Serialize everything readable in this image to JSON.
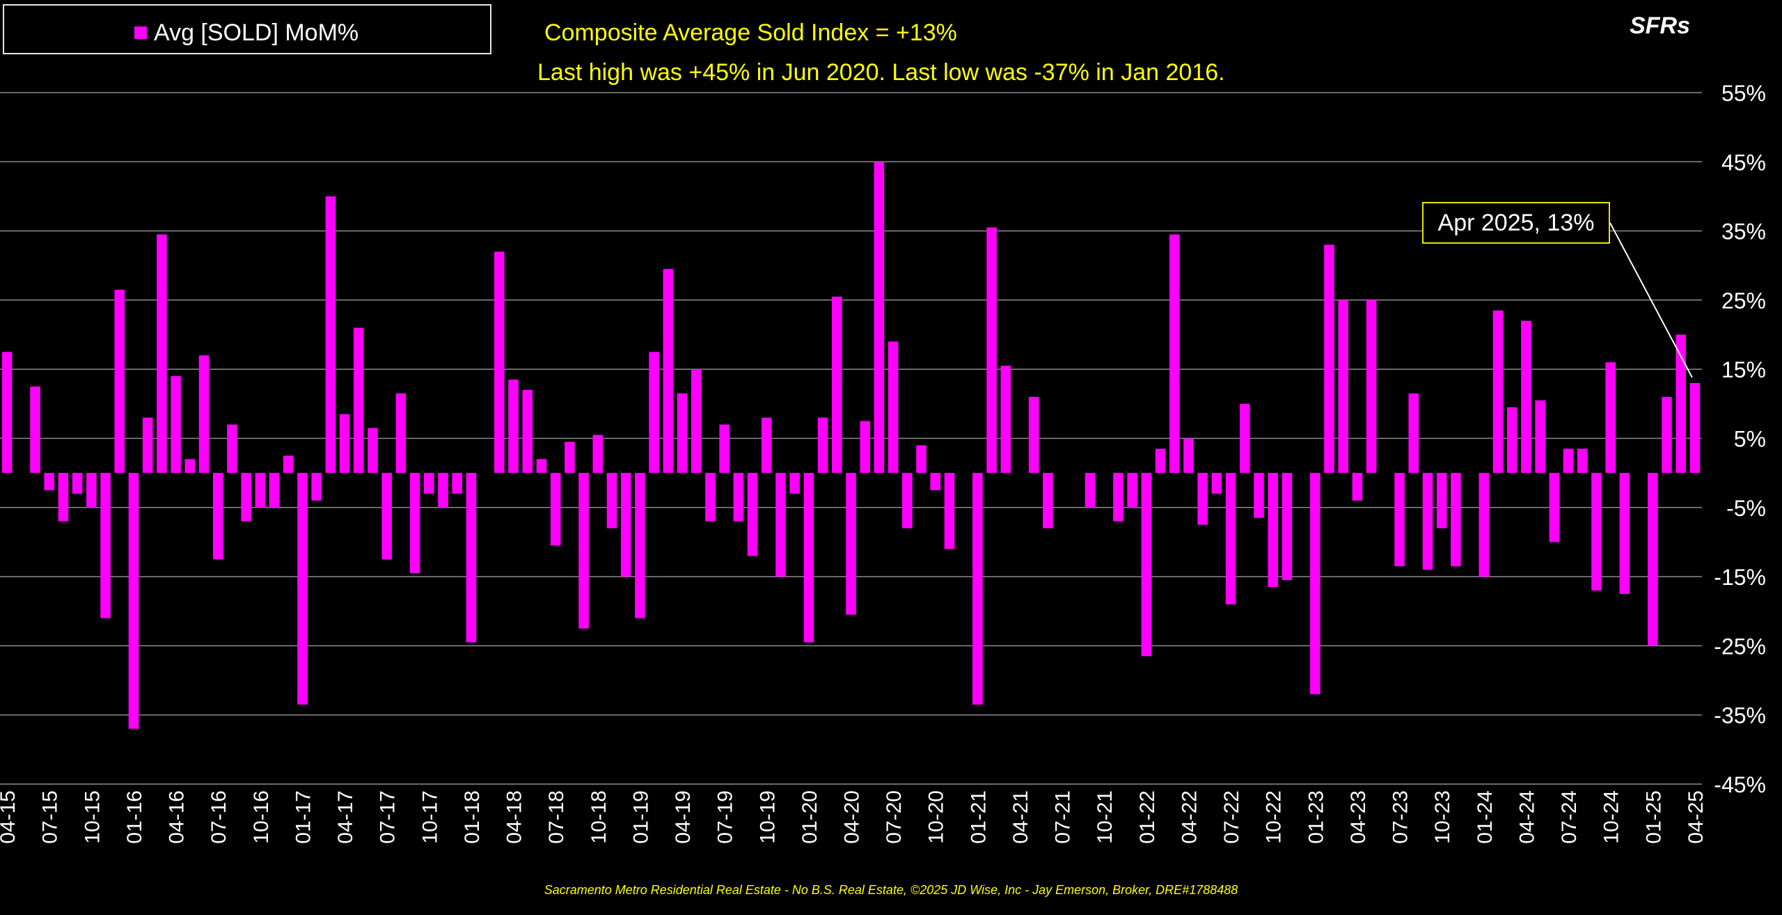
{
  "legend": {
    "label": "Avg [SOLD] MoM%",
    "swatch_color": "#ff00ff"
  },
  "subtitle": {
    "line1": "Composite Average Sold Index = +13%",
    "line2": "Last high was +45% in Jun 2020. Last low was -37% in Jan 2016."
  },
  "corner_label": "SFRs",
  "callout": {
    "text": "Apr 2025, 13%"
  },
  "footer": "Sacramento Metro Residential Real Estate - No B.S. Real Estate, ©2025 JD Wise, Inc - Jay Emerson, Broker, DRE#1788488",
  "colors": {
    "background": "#000000",
    "bar": "#ff00ff",
    "grid": "#8c8c8c",
    "text": "#ffffff",
    "highlight": "#ffff00"
  },
  "chart_data": {
    "type": "bar",
    "title": "",
    "xlabel": "",
    "ylabel": "",
    "ylim": [
      -45,
      55
    ],
    "yticks": [
      55,
      45,
      35,
      25,
      15,
      5,
      -5,
      -15,
      -25,
      -35,
      -45
    ],
    "ytick_labels": [
      "55%",
      "45%",
      "35%",
      "25%",
      "15%",
      "5%",
      "-5%",
      "-15%",
      "-25%",
      "-35%",
      "-45%"
    ],
    "grid": true,
    "legend_position": "top-left",
    "x_labels": [
      "04-15",
      "07-15",
      "10-15",
      "01-16",
      "04-16",
      "07-16",
      "10-16",
      "01-17",
      "04-17",
      "07-17",
      "10-17",
      "01-18",
      "04-18",
      "07-18",
      "10-18",
      "01-19",
      "04-19",
      "07-19",
      "10-19",
      "01-20",
      "04-20",
      "07-20",
      "10-20",
      "01-21",
      "04-21",
      "07-21",
      "10-21",
      "01-22",
      "04-22",
      "07-22",
      "10-22",
      "01-23",
      "04-23",
      "07-23",
      "10-23",
      "01-24",
      "04-24",
      "07-24",
      "10-24",
      "01-25",
      "04-25"
    ],
    "series": [
      {
        "name": "Avg [SOLD] MoM%",
        "values": [
          17.5,
          0,
          12.5,
          -2.5,
          -7,
          -3,
          -5,
          -21,
          26.5,
          -37,
          8,
          34.5,
          14,
          2,
          17,
          -12.5,
          7,
          -7,
          -5,
          -5,
          2.5,
          -33.5,
          -4,
          40,
          8.5,
          21,
          6.5,
          -12.5,
          11.5,
          -14.5,
          -3,
          -5,
          -3,
          -24.5,
          0,
          32,
          13.5,
          12,
          2,
          -10.5,
          4.5,
          -22.5,
          5.5,
          -8,
          -15,
          -21,
          17.5,
          29.5,
          11.5,
          15,
          -7,
          7,
          -7,
          -12,
          8,
          -15,
          -3,
          -24.5,
          8,
          25.5,
          -20.5,
          7.5,
          45,
          19,
          -8,
          4,
          -2.5,
          -11,
          0,
          -33.5,
          35.5,
          15.5,
          0,
          11,
          -8,
          0,
          0,
          -5,
          0,
          -7,
          -5,
          -26.5,
          3.5,
          34.5,
          5,
          -7.5,
          -3,
          -19,
          10,
          -6.5,
          -16.5,
          -15.5,
          0,
          -32,
          33,
          25,
          -4,
          25,
          0,
          -13.5,
          11.5,
          -14,
          -8,
          -13.5,
          0,
          -15,
          23.5,
          9.5,
          22,
          10.5,
          -10,
          3.5,
          3.5,
          -17,
          16,
          -17.5,
          0,
          -25,
          11,
          20,
          13
        ]
      }
    ]
  }
}
